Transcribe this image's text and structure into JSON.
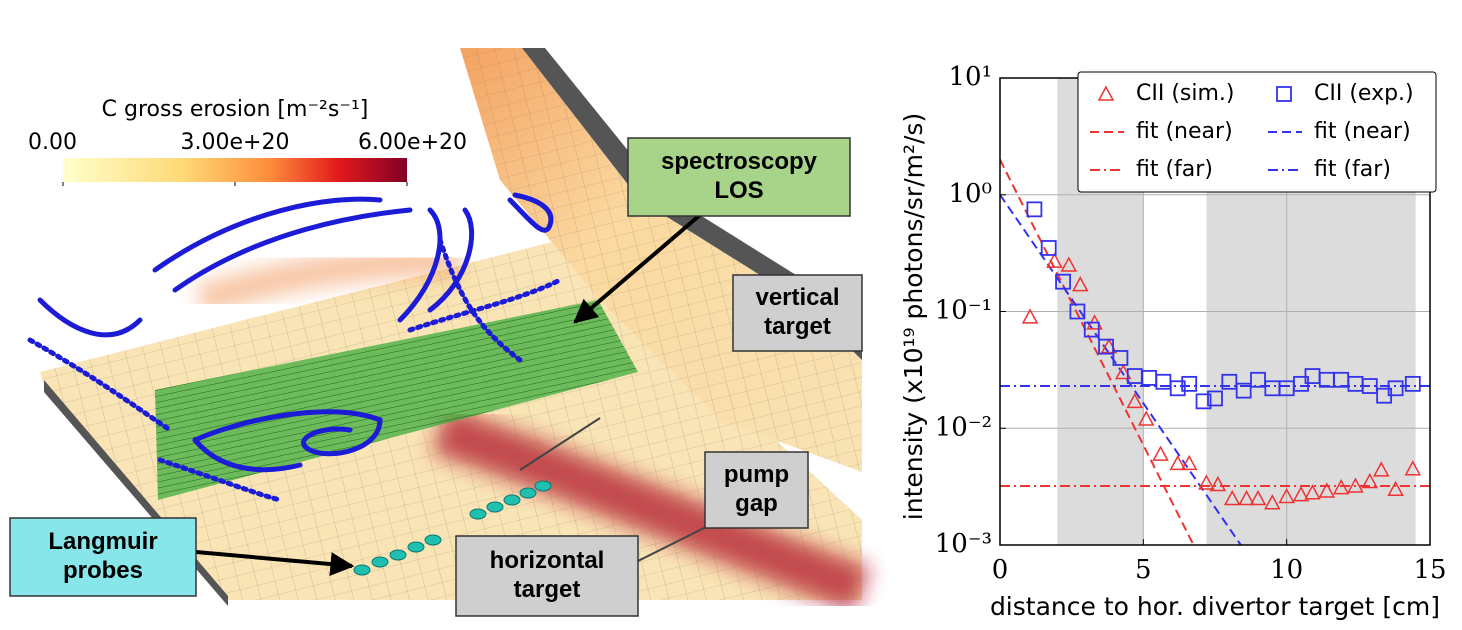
{
  "chart_data": [
    {
      "type": "surface-render",
      "colorbar": {
        "label": "C gross erosion [m⁻²s⁻¹]",
        "lim": [
          0,
          6e+20
        ],
        "ticks": [
          {
            "value": 0,
            "label": "0.00"
          },
          {
            "value": 3e+20,
            "label": "3.00e+20"
          },
          {
            "value": 6e+20,
            "label": "6.00e+20"
          }
        ]
      },
      "annotations": [
        {
          "lines": [
            "spectroscopy",
            "LOS"
          ]
        },
        {
          "lines": [
            "vertical",
            "target"
          ]
        },
        {
          "lines": [
            "pump",
            "gap"
          ]
        },
        {
          "lines": [
            "horizontal",
            "target"
          ]
        },
        {
          "lines": [
            "Langmuir",
            "probes"
          ]
        }
      ]
    },
    {
      "type": "scatter",
      "xlabel": "distance to hor. divertor target [cm]",
      "ylabel": "intensity (x10¹⁹ photons/sr/m²/s)",
      "xlim": [
        0,
        15
      ],
      "xticks": [
        0,
        5,
        10,
        15
      ],
      "ylim": [
        0.001,
        10
      ],
      "log_y": true,
      "yticks": [
        {
          "value": 0.001,
          "label": "10⁻³"
        },
        {
          "value": 0.01,
          "label": "10⁻²"
        },
        {
          "value": 0.1,
          "label": "10⁻¹"
        },
        {
          "value": 1,
          "label": "10⁰"
        },
        {
          "value": 10,
          "label": "10¹"
        }
      ],
      "grid": true,
      "legend": "upper right",
      "shaded_regions": [
        [
          2,
          5
        ],
        [
          7.2,
          14.5
        ]
      ],
      "series": [
        {
          "name": "CII (sim.)",
          "color": "#ee3333",
          "marker": "triangle",
          "x": [
            1.05,
            1.9,
            2.4,
            2.8,
            3.3,
            3.8,
            4.3,
            4.7,
            5.1,
            5.6,
            6.2,
            6.6,
            7.2,
            7.6,
            8.1,
            8.6,
            9.0,
            9.5,
            10.0,
            10.5,
            10.9,
            11.4,
            11.9,
            12.4,
            12.9,
            13.3,
            13.8,
            14.4
          ],
          "values": [
            0.09,
            0.27,
            0.25,
            0.17,
            0.08,
            0.05,
            0.03,
            0.017,
            0.012,
            0.006,
            0.005,
            0.005,
            0.0034,
            0.0033,
            0.0025,
            0.0025,
            0.0025,
            0.0023,
            0.0026,
            0.0027,
            0.0028,
            0.0029,
            0.0031,
            0.0032,
            0.0035,
            0.0044,
            0.003,
            0.0045
          ]
        },
        {
          "name": "CII (exp.)",
          "color": "#3333ee",
          "marker": "square",
          "x": [
            1.2,
            1.7,
            2.2,
            2.7,
            3.2,
            3.7,
            4.2,
            4.7,
            5.2,
            5.7,
            6.2,
            6.6,
            7.1,
            7.5,
            8.0,
            8.5,
            9.0,
            9.5,
            10.0,
            10.5,
            10.9,
            11.4,
            11.9,
            12.4,
            12.9,
            13.4,
            13.8,
            14.4
          ],
          "values": [
            0.75,
            0.35,
            0.18,
            0.1,
            0.07,
            0.05,
            0.04,
            0.028,
            0.027,
            0.025,
            0.022,
            0.024,
            0.017,
            0.018,
            0.025,
            0.021,
            0.026,
            0.022,
            0.022,
            0.024,
            0.028,
            0.026,
            0.026,
            0.024,
            0.023,
            0.019,
            0.022,
            0.024
          ]
        },
        {
          "name": "fit (near)",
          "color": "#ee3333",
          "linestyle": "dashed",
          "x": [
            0,
            6.75
          ],
          "values": [
            2,
            0.001
          ]
        },
        {
          "name": "fit (near)",
          "color": "#3333ee",
          "linestyle": "dashed",
          "x": [
            0,
            8.4
          ],
          "values": [
            1,
            0.001
          ]
        },
        {
          "name": "fit (far)",
          "color": "#ee3333",
          "linestyle": "dashdot",
          "x": [
            0,
            15
          ],
          "values": [
            0.0032,
            0.0032
          ]
        },
        {
          "name": "fit (far)",
          "color": "#3333ee",
          "linestyle": "dashdot",
          "x": [
            0,
            15
          ],
          "values": [
            0.023,
            0.023
          ]
        }
      ]
    }
  ]
}
